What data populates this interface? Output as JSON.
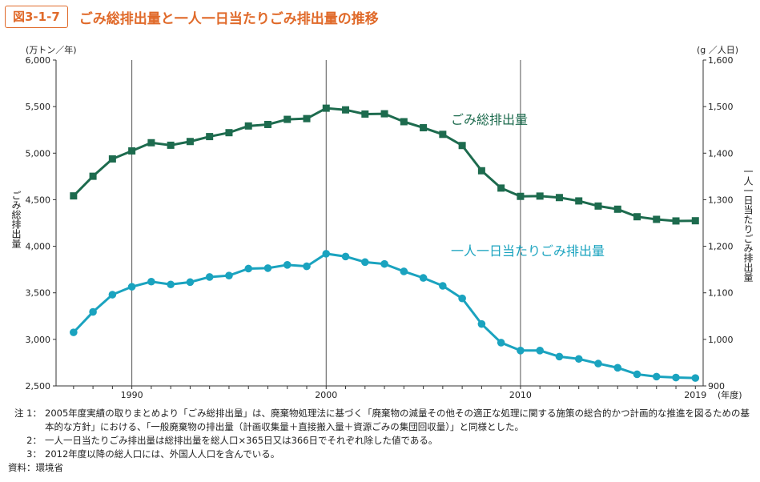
{
  "header": {
    "figure_number": "図3-1-7",
    "title": "ごみ総排出量と一人一日当たりごみ排出量の推移"
  },
  "chart_data": {
    "type": "line",
    "x": [
      1987,
      1988,
      1989,
      1990,
      1991,
      1992,
      1993,
      1994,
      1995,
      1996,
      1997,
      1998,
      1999,
      2000,
      2001,
      2002,
      2003,
      2004,
      2005,
      2006,
      2007,
      2008,
      2009,
      2010,
      2011,
      2012,
      2013,
      2014,
      2015,
      2016,
      2017,
      2018,
      2019
    ],
    "x_tick_labels": [
      "1990",
      "2000",
      "2010",
      "2019"
    ],
    "x_tick_values": [
      1990,
      2000,
      2010,
      2019
    ],
    "x_unit": "(年度)",
    "xlim": [
      1986.1,
      2019.4
    ],
    "y_left": {
      "label": "ごみ総排出量",
      "unit": "(万トン／年)",
      "ylim": [
        2500,
        6000
      ],
      "tick_values": [
        2500,
        3000,
        3500,
        4000,
        4500,
        5000,
        5500,
        6000
      ],
      "tick_labels": [
        "2,500",
        "3,000",
        "3,500",
        "4,000",
        "4,500",
        "5,000",
        "5,500",
        "6,000"
      ]
    },
    "y_right": {
      "label": "一人一日当たりごみ排出量",
      "unit": "(g ／人日)",
      "ylim": [
        900,
        1600
      ],
      "tick_values": [
        900,
        1000,
        1100,
        1200,
        1300,
        1400,
        1500,
        1600
      ],
      "tick_labels": [
        "900",
        "1,000",
        "1,100",
        "1,200",
        "1,300",
        "1,400",
        "1,500",
        "1,600"
      ]
    },
    "series": [
      {
        "name": "ごみ総排出量",
        "axis": "left",
        "color": "#1d6b4e",
        "values": [
          4541,
          4752,
          4938,
          5024,
          5112,
          5085,
          5125,
          5178,
          5220,
          5292,
          5308,
          5363,
          5371,
          5483,
          5465,
          5420,
          5423,
          5338,
          5273,
          5202,
          5082,
          4811,
          4625,
          4536,
          4539,
          4523,
          4487,
          4432,
          4398,
          4317,
          4289,
          4272,
          4274
        ]
      },
      {
        "name": "一人一日当たりごみ排出量",
        "axis": "right",
        "color": "#1aa3bf",
        "values": [
          1015,
          1059,
          1096,
          1113,
          1124,
          1118,
          1123,
          1134,
          1137,
          1152,
          1153,
          1160,
          1157,
          1184,
          1178,
          1166,
          1162,
          1146,
          1132,
          1115,
          1088,
          1033,
          993,
          976,
          976,
          963,
          958,
          948,
          939,
          925,
          920,
          918,
          917
        ]
      }
    ],
    "grid": "vertical lines at 1990, 2000, 2010"
  },
  "notes": [
    {
      "label": "注 1：",
      "text": "2005年度実績の取りまとめより「ごみ総排出量」は、廃棄物処理法に基づく「廃棄物の減量その他その適正な処理に関する施策の総合的かつ計画的な推進を図るための基本的な方針」における、「一般廃棄物の排出量（計画収集量＋直接搬入量＋資源ごみの集団回収量）」と同様とした。"
    },
    {
      "label": "2：",
      "text": "一人一日当たりごみ排出量は総排出量を総人口×365日又は366日でそれぞれ除した値である。"
    },
    {
      "label": "3：",
      "text": "2012年度以降の総人口には、外国人人口を含んでいる。"
    }
  ],
  "source": "資料：環境省"
}
